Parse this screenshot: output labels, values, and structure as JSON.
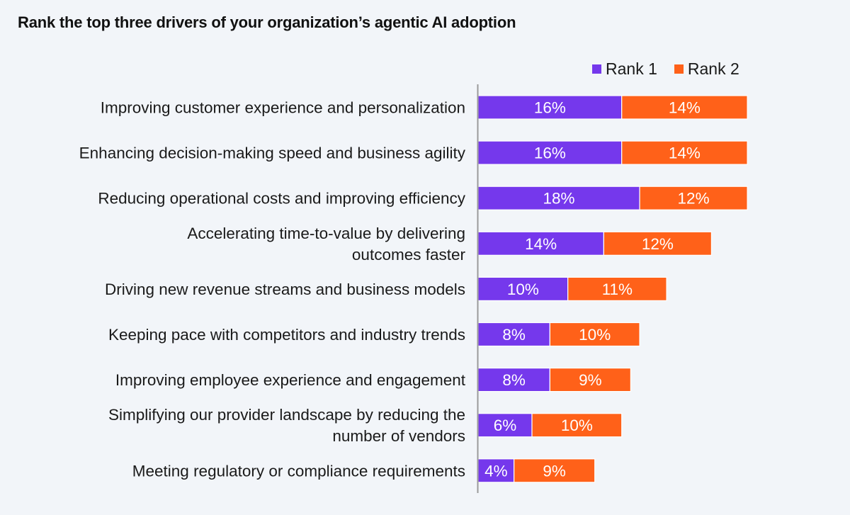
{
  "chart_data": {
    "type": "bar",
    "orientation": "horizontal",
    "stacked": true,
    "title": "Rank the top three drivers of your organization’s agentic AI adoption",
    "xlabel": "",
    "ylabel": "",
    "xlim": [
      0,
      30
    ],
    "grid": false,
    "legend_position": "top-right",
    "value_suffix": "%",
    "categories": [
      [
        "Improving customer experience and personalization"
      ],
      [
        "Enhancing decision-making speed and business agility"
      ],
      [
        "Reducing operational costs and improving efficiency"
      ],
      [
        "Accelerating time-to-value by delivering",
        "outcomes faster"
      ],
      [
        "Driving new revenue streams and business models"
      ],
      [
        "Keeping pace with competitors and industry trends"
      ],
      [
        "Improving employee experience and engagement"
      ],
      [
        "Simplifying our provider landscape by reducing the",
        "number of vendors"
      ],
      [
        "Meeting regulatory or compliance requirements"
      ]
    ],
    "series": [
      {
        "name": "Rank 1",
        "color": "#7538ec",
        "values": [
          16,
          16,
          18,
          14,
          10,
          8,
          8,
          6,
          4
        ]
      },
      {
        "name": "Rank 2",
        "color": "#ff6119",
        "values": [
          14,
          14,
          12,
          12,
          11,
          10,
          9,
          10,
          9
        ]
      }
    ]
  },
  "colors": {
    "background": "#f2f5f9",
    "axis": "#9a9a9a",
    "text": "#1a1a1a",
    "bar_label": "#ffffff"
  }
}
